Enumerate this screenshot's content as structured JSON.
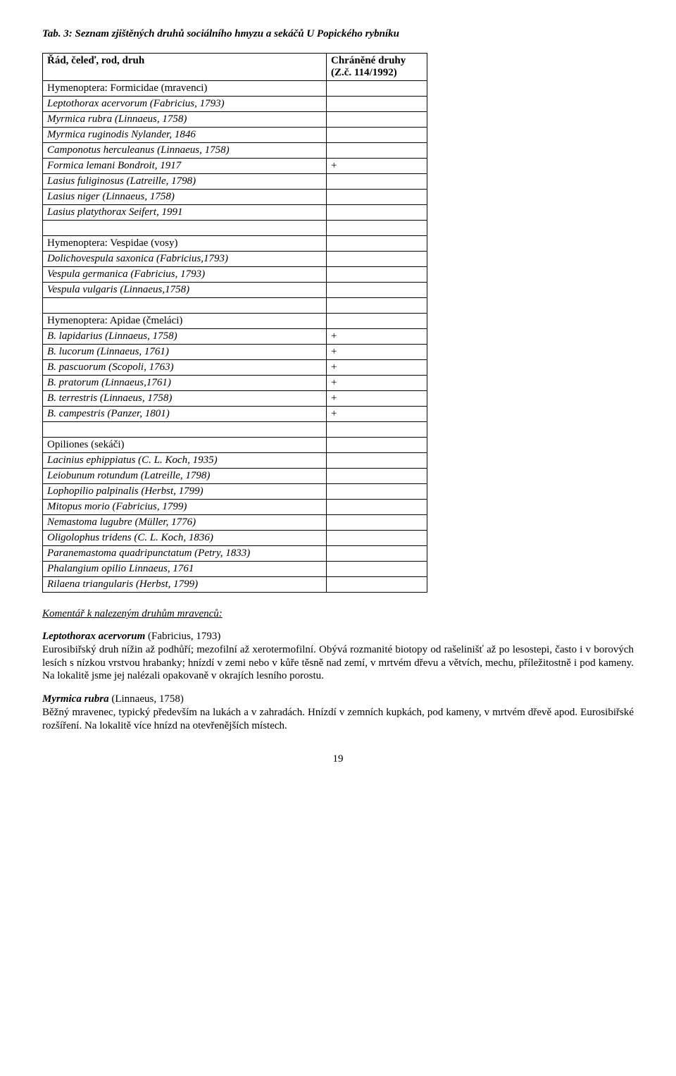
{
  "title": "Tab. 3: Seznam zjištěných druhů sociálního hmyzu a sekáčů U Popického rybníku",
  "table": {
    "header": {
      "col1": "Řád, čeleď, rod, druh",
      "col2": "Chráněné druhy (Z.č. 114/1992)"
    },
    "rows": [
      {
        "c1": "Hymenoptera: Formicidae (mravenci)",
        "c2": "",
        "italic": false
      },
      {
        "c1": "Leptothorax acervorum (Fabricius, 1793)",
        "c2": "",
        "italic": true
      },
      {
        "c1": "Myrmica rubra (Linnaeus, 1758)",
        "c2": "",
        "italic": true
      },
      {
        "c1": "Myrmica ruginodis Nylander, 1846",
        "c2": "",
        "italic": true
      },
      {
        "c1": "Camponotus herculeanus (Linnaeus, 1758)",
        "c2": "",
        "italic": true
      },
      {
        "c1": "Formica lemani Bondroit, 1917",
        "c2": "+",
        "italic": true
      },
      {
        "c1": "Lasius fuliginosus (Latreille, 1798)",
        "c2": "",
        "italic": true
      },
      {
        "c1": "Lasius niger (Linnaeus, 1758)",
        "c2": "",
        "italic": true
      },
      {
        "c1": "Lasius platythorax Seifert, 1991",
        "c2": "",
        "italic": true
      },
      {
        "c1": "",
        "c2": "",
        "italic": false
      },
      {
        "c1": "Hymenoptera: Vespidae (vosy)",
        "c2": "",
        "italic": false
      },
      {
        "c1": "Dolichovespula saxonica (Fabricius,1793)",
        "c2": "",
        "italic": true
      },
      {
        "c1": "Vespula germanica (Fabricius, 1793)",
        "c2": "",
        "italic": true
      },
      {
        "c1": "Vespula vulgaris (Linnaeus,1758)",
        "c2": "",
        "italic": true
      },
      {
        "c1": "",
        "c2": "",
        "italic": false
      },
      {
        "c1": "Hymenoptera: Apidae (čmeláci)",
        "c2": "",
        "italic": false
      },
      {
        "c1": "B. lapidarius (Linnaeus, 1758)",
        "c2": "+",
        "italic": true
      },
      {
        "c1": "B. lucorum (Linnaeus, 1761)",
        "c2": "+",
        "italic": true
      },
      {
        "c1": "B. pascuorum (Scopoli, 1763)",
        "c2": "+",
        "italic": true
      },
      {
        "c1": "B. pratorum (Linnaeus,1761)",
        "c2": "+",
        "italic": true
      },
      {
        "c1": "B. terrestris (Linnaeus, 1758)",
        "c2": "+",
        "italic": true
      },
      {
        "c1": "B. campestris (Panzer, 1801)",
        "c2": "+",
        "italic": true
      },
      {
        "c1": "",
        "c2": "",
        "italic": false
      },
      {
        "c1": "Opiliones (sekáči)",
        "c2": "",
        "italic": false
      },
      {
        "c1": "Lacinius ephippiatus (C. L. Koch, 1935)",
        "c2": "",
        "italic": true
      },
      {
        "c1": "Leiobunum rotundum (Latreille, 1798)",
        "c2": "",
        "italic": true
      },
      {
        "c1": "Lophopilio palpinalis (Herbst, 1799)",
        "c2": "",
        "italic": true
      },
      {
        "c1": "Mitopus morio (Fabricius, 1799)",
        "c2": "",
        "italic": true
      },
      {
        "c1": "Nemastoma lugubre (Müller, 1776)",
        "c2": "",
        "italic": true
      },
      {
        "c1": "Oligolophus tridens (C. L. Koch, 1836)",
        "c2": "",
        "italic": true
      },
      {
        "c1": "Paranemastoma quadripunctatum (Petry, 1833)",
        "c2": "",
        "italic": true
      },
      {
        "c1": "Phalangium opilio Linnaeus, 1761",
        "c2": "",
        "italic": true
      },
      {
        "c1": "Rilaena triangularis (Herbst, 1799)",
        "c2": "",
        "italic": true
      }
    ]
  },
  "commentary_head": "Komentář k nalezeným druhům mravenců:",
  "sp1_name": "Leptothorax acervorum",
  "sp1_auth": " (Fabricius, 1793)",
  "sp1_text": "Eurosibiřský druh nížin až podhůří; mezofilní až xerotermofilní. Obývá rozmanité biotopy od rašelinišť až po lesostepi, často i v borových lesích s nízkou vrstvou hrabanky; hnízdí v zemi nebo v kůře těsně nad zemí, v mrtvém dřevu a větvích, mechu, příležitostně i pod kameny. Na lokalitě jsme jej nalézali opakovaně v okrajích lesního porostu.",
  "sp2_name": "Myrmica rubra",
  "sp2_auth": " (Linnaeus, 1758)",
  "sp2_text": "Běžný mravenec, typický především na lukách a v zahradách. Hnízdí v zemních kupkách, pod kameny, v mrtvém dřevě apod. Eurosibiřské rozšíření. Na lokalitě více hnízd na otevřenějších místech.",
  "page_number": "19"
}
